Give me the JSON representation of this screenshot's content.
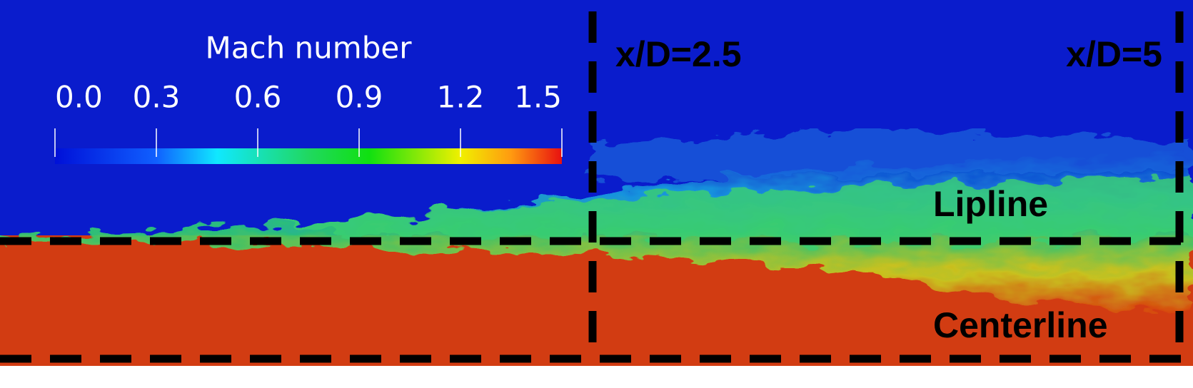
{
  "colorbar": {
    "title": "Mach number",
    "lim": [
      0,
      1.5
    ],
    "ticks": [
      {
        "value": 0,
        "label": "0.0"
      },
      {
        "value": 0.3,
        "label": "0.3"
      },
      {
        "value": 0.6,
        "label": "0.6"
      },
      {
        "value": 0.9,
        "label": "0.9"
      },
      {
        "value": 1.2,
        "label": "1.2"
      },
      {
        "value": 1.5,
        "label": "1.5"
      }
    ]
  },
  "annotations": {
    "station_1": "x/D=2.5",
    "station_2": "x/D=5",
    "lipline": "Lipline",
    "centerline": "Centerline"
  }
}
